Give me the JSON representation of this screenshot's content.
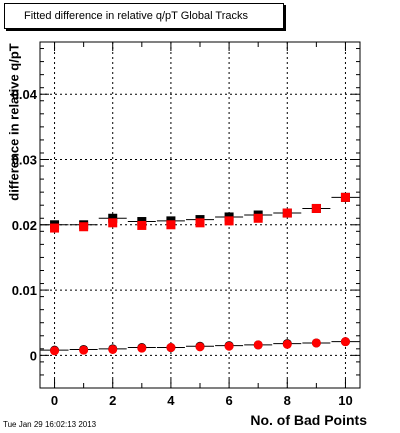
{
  "chart_data": {
    "type": "scatter",
    "title": "Fitted difference in relative q/pT  Global Tracks",
    "xlabel": "No. of Bad Points",
    "ylabel": "difference in relative q/pT",
    "xlim": [
      -0.5,
      10.5
    ],
    "ylim": [
      -0.005,
      0.048
    ],
    "xticks": [
      0,
      2,
      4,
      6,
      8,
      10
    ],
    "yticks": [
      0,
      0.01,
      0.02,
      0.03,
      0.04
    ],
    "ytick_labels": [
      "0",
      "0.01",
      "0.02",
      "0.03",
      "0.04"
    ],
    "grid": true,
    "series": [
      {
        "marker": "square-black",
        "x": [
          0,
          1,
          2,
          3,
          4,
          5,
          6,
          7,
          8,
          9,
          10
        ],
        "y": [
          0.02,
          0.02,
          0.021,
          0.0205,
          0.0206,
          0.0208,
          0.0212,
          0.0215,
          0.0218,
          0.0225,
          0.0242
        ]
      },
      {
        "marker": "square-red",
        "x": [
          0,
          1,
          2,
          3,
          4,
          5,
          6,
          7,
          8,
          9,
          10
        ],
        "y": [
          0.0195,
          0.0197,
          0.0203,
          0.0199,
          0.02,
          0.0203,
          0.0206,
          0.021,
          0.0218,
          0.0225,
          0.0242
        ]
      },
      {
        "marker": "circle-black",
        "x": [
          0,
          1,
          2,
          3,
          4,
          5,
          6,
          7,
          8,
          9,
          10
        ],
        "y": [
          0.0008,
          0.0009,
          0.001,
          0.0012,
          0.0012,
          0.0014,
          0.0015,
          0.0016,
          0.0018,
          0.0019,
          0.0021
        ]
      },
      {
        "marker": "circle-red",
        "x": [
          0,
          1,
          2,
          3,
          4,
          5,
          6,
          7,
          8,
          9,
          10
        ],
        "y": [
          0.0007,
          0.0008,
          0.0009,
          0.0011,
          0.0012,
          0.0013,
          0.0014,
          0.0016,
          0.0017,
          0.0019,
          0.0021
        ]
      }
    ],
    "colors": {
      "red": "#ff0000",
      "black": "#000000"
    }
  },
  "footer": {
    "timestamp": "Tue Jan 29 16:02:13 2013"
  }
}
